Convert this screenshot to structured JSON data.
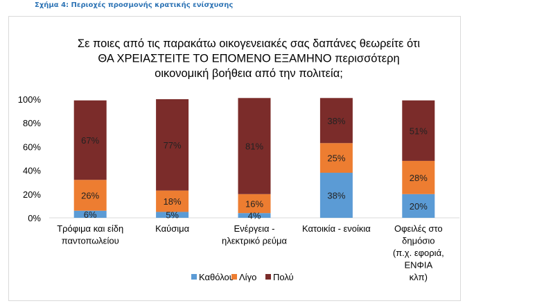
{
  "caption": "Σχήμα 4: Περιοχές προσμονής κρατικής ενίσχυσης",
  "chart_data": {
    "type": "bar",
    "stacked": true,
    "percent_stacked": true,
    "title_lines": [
      "Σε ποιες από τις παρακάτω οικογενειακές σας δαπάνες θεωρείτε ότι",
      "ΘΑ ΧΡΕΙΑΣΤΕΙΤΕ ΤΟ ΕΠΟΜΕΝΟ ΕΞΑΜΗΝΟ  περισσότερη",
      "οικονομική βοήθεια από την πολιτεία;"
    ],
    "categories": [
      [
        "Τρόφιμα και είδη",
        "παντοπωλείου"
      ],
      [
        "Καύσιμα"
      ],
      [
        "Ενέργεια -",
        "ηλεκτρικό ρεύμα"
      ],
      [
        "Κατοικία - ενοίκια"
      ],
      [
        "Οφειλές στο",
        "δημόσιο",
        "(π.χ. εφοριά,",
        "ΕΝΦΙΑ",
        "κλπ)"
      ]
    ],
    "series": [
      {
        "name": "Καθόλου",
        "color": "#5b9bd5",
        "values": [
          6,
          5,
          4,
          38,
          20
        ],
        "labels": [
          "6%",
          "5%",
          "4%",
          "38%",
          "20%"
        ]
      },
      {
        "name": "Λίγο",
        "color": "#ed7d31",
        "values": [
          26,
          18,
          16,
          25,
          28
        ],
        "labels": [
          "26%",
          "18%",
          "16%",
          "25%",
          "28%"
        ]
      },
      {
        "name": "Πολύ",
        "color": "#7b2c2a",
        "values": [
          67,
          77,
          81,
          38,
          51
        ],
        "labels": [
          "67%",
          "77%",
          "81%",
          "38%",
          "51%"
        ]
      }
    ],
    "ylim": [
      0,
      100
    ],
    "yticks": [
      "0%",
      "20%",
      "40%",
      "60%",
      "80%",
      "100%"
    ],
    "legend_position": "bottom"
  }
}
